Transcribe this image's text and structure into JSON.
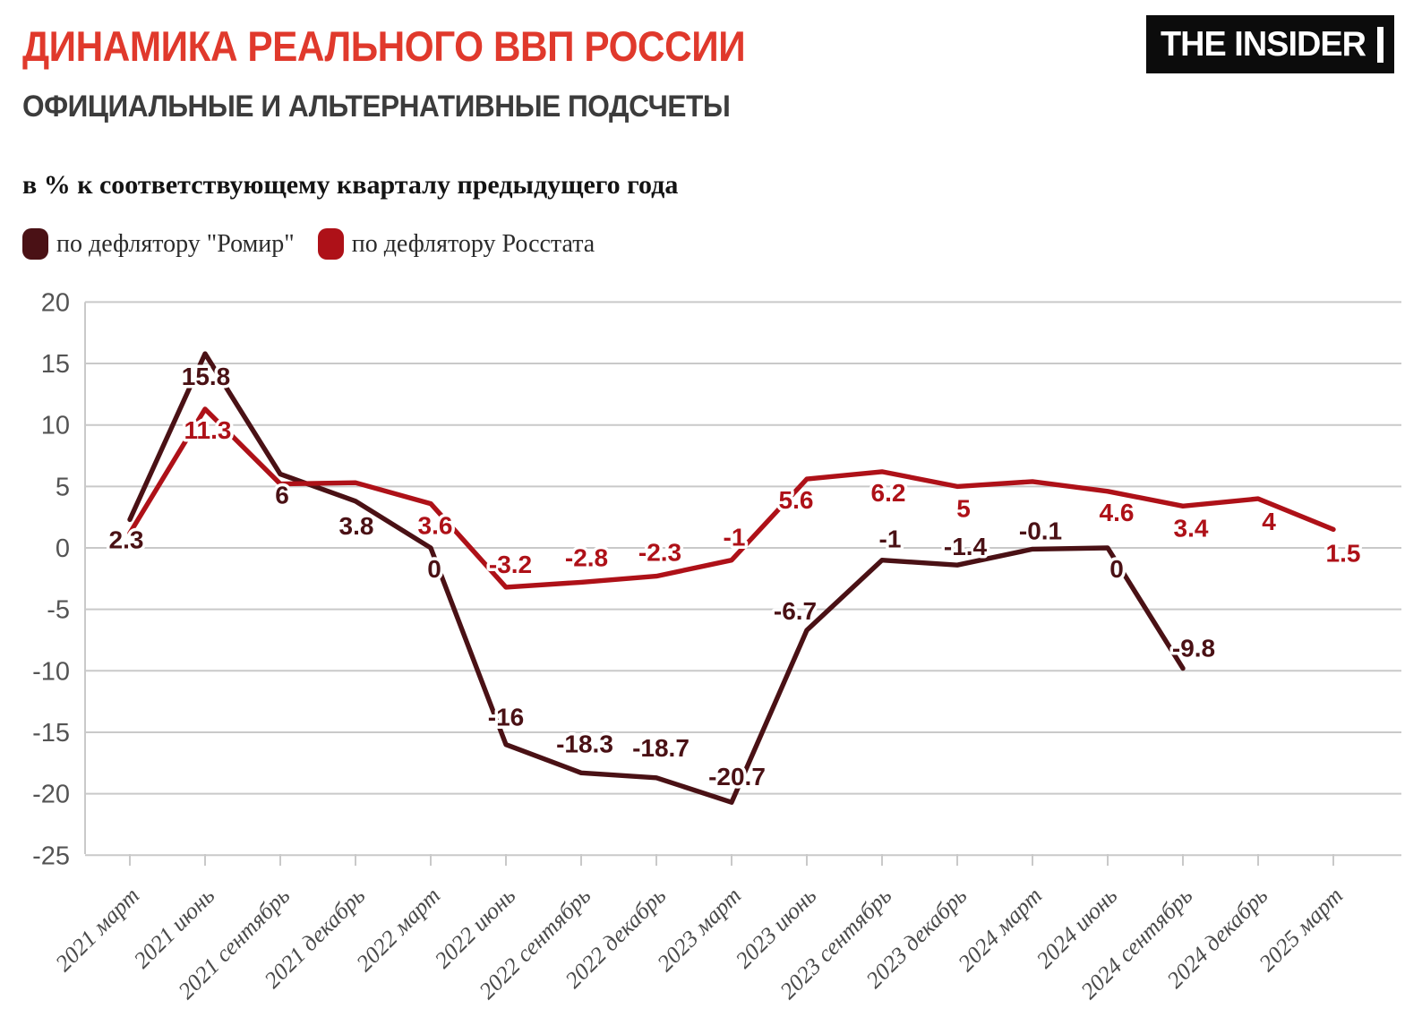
{
  "header": {
    "title": "ДИНАМИКА РЕАЛЬНОГО ВВП РОССИИ",
    "subtitle": "ОФИЦИАЛЬНЫЕ И АЛЬТЕРНАТИВНЫЕ ПОДСЧЕТЫ",
    "unit_note": "в % к соответствующему кварталу предыдущего года",
    "logo_text": "THE INSIDER"
  },
  "colors": {
    "title": "#e0392c",
    "subtitle": "#3c3c3c",
    "romir": "#4a1115",
    "rosstat": "#ae1118",
    "grid": "#c9c9c9",
    "y_axis_text": "#545454",
    "x_axis_text": "#4a4a4a",
    "label_halo": "#ffffff"
  },
  "legend": [
    {
      "label": "по дефлятору \"Ромир\"",
      "color": "#4a1115"
    },
    {
      "label": "по дефлятору Росстата",
      "color": "#ae1118"
    }
  ],
  "chart_data": {
    "type": "line",
    "title": "ДИНАМИКА РЕАЛЬНОГО ВВП РОССИИ — ОФИЦИАЛЬНЫЕ И АЛЬТЕРНАТИВНЫЕ ПОДСЧЕТЫ",
    "ylabel": "в % к соответствующему кварталу предыдущего года",
    "ylim": [
      -25,
      20
    ],
    "y_ticks": [
      20,
      15,
      10,
      5,
      0,
      -5,
      -10,
      -15,
      -20,
      -25
    ],
    "grid": true,
    "legend_position": "top-left",
    "categories": [
      "2021 март",
      "2021 июнь",
      "2021 сентябрь",
      "2021 декабрь",
      "2022 март",
      "2022 июнь",
      "2022 сентябрь",
      "2022 декабрь",
      "2023 март",
      "2023 июнь",
      "2023 сентябрь",
      "2023 декабрь",
      "2024 март",
      "2024 июнь",
      "2024 сентябрь",
      "2024 декабрь",
      "2025 март"
    ],
    "series": [
      {
        "name": "по дефлятору \"Ромир\"",
        "color": "#4a1115",
        "values": [
          2.3,
          15.8,
          6,
          3.8,
          0,
          -16,
          -18.3,
          -18.7,
          -20.7,
          -6.7,
          -1,
          -1.4,
          -0.1,
          0,
          -9.8,
          null,
          null
        ],
        "labels": [
          "2.3",
          "15.8",
          "6",
          "3.8",
          "0",
          "-16",
          "-18.3",
          "-18.7",
          "-20.7",
          "-6.7",
          "-1",
          "-1.4",
          "-0.1",
          "0",
          "-9.8",
          null,
          null
        ],
        "label_offsets": [
          [
            -4,
            22
          ],
          [
            1,
            25
          ],
          [
            2,
            23
          ],
          [
            1,
            27
          ],
          [
            4,
            23
          ],
          [
            0,
            -31
          ],
          [
            4,
            -33
          ],
          [
            5,
            -34
          ],
          [
            6,
            -29
          ],
          [
            -13,
            -22
          ],
          [
            9,
            -24
          ],
          [
            9,
            -21
          ],
          [
            9,
            -21
          ],
          [
            10,
            23
          ],
          [
            12,
            -23
          ],
          null,
          null
        ]
      },
      {
        "name": "по дефлятору Росстата",
        "color": "#ae1118",
        "values": [
          1.2,
          11.3,
          5.2,
          5.3,
          3.6,
          -3.2,
          -2.8,
          -2.3,
          -1,
          5.6,
          6.2,
          5,
          5.4,
          4.6,
          3.4,
          4,
          1.5
        ],
        "labels": [
          null,
          "11.3",
          null,
          null,
          "3.6",
          "-3.2",
          "-2.8",
          "-2.3",
          "-1",
          "5.6",
          "6.2",
          "5",
          null,
          "4.6",
          "3.4",
          "4",
          "1.5"
        ],
        "label_offsets": [
          null,
          [
            3,
            23
          ],
          null,
          null,
          [
            5,
            24
          ],
          [
            5,
            -26
          ],
          [
            6,
            -28
          ],
          [
            4,
            -27
          ],
          [
            3,
            -26
          ],
          [
            -12,
            23
          ],
          [
            7,
            23
          ],
          [
            7,
            24
          ],
          null,
          [
            10,
            23
          ],
          [
            9,
            24
          ],
          [
            12,
            25
          ],
          [
            11,
            26
          ]
        ]
      }
    ]
  }
}
